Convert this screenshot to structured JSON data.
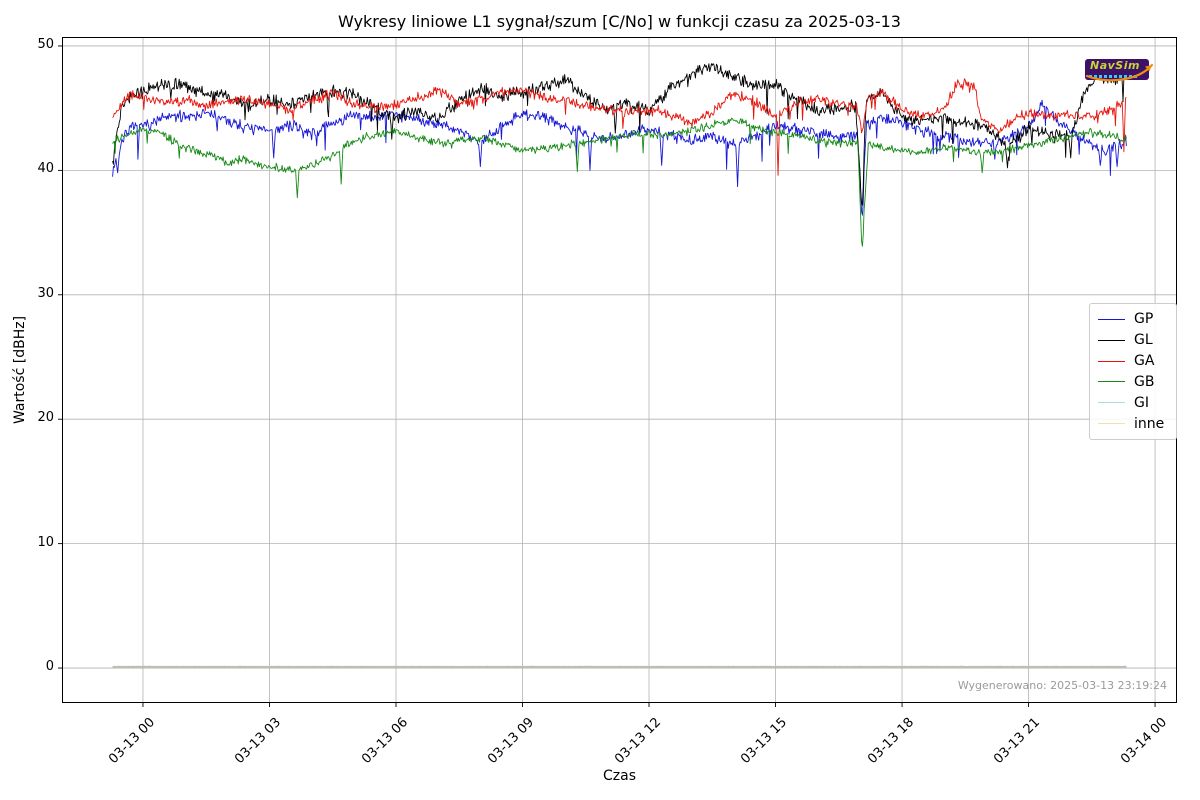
{
  "watermark": {
    "text": "NavSim"
  },
  "footer": {
    "generated": "Wygenerowano: 2025-03-13 23:19:24"
  },
  "chart_data": {
    "type": "line",
    "title": "Wykresy liniowe L1 sygnał/szum [C/No] w funkcji czasu za 2025-03-13",
    "xlabel": "Czas",
    "ylabel": "Wartość [dBHz]",
    "x_unit": "hours since 2025-03-13 00:00",
    "xlim": [
      -1.92,
      24.52
    ],
    "ylim": [
      -2.81,
      50.72
    ],
    "grid": true,
    "legend_position": "center right",
    "xticks": {
      "values": [
        0,
        3,
        6,
        9,
        12,
        15,
        18,
        21,
        24
      ],
      "labels": [
        "03-13 00",
        "03-13 03",
        "03-13 06",
        "03-13 09",
        "03-13 12",
        "03-13 15",
        "03-13 18",
        "03-13 21",
        "03-14 00"
      ]
    },
    "yticks": {
      "values": [
        0,
        10,
        20,
        30,
        40,
        50
      ]
    },
    "series": [
      {
        "name": "GP",
        "color": "#1717d6",
        "seed": 7,
        "noise": 0.55,
        "spike_prob": 0.035,
        "spike_depth": 2.3,
        "width": 0.9,
        "base": [
          [
            -0.72,
            40.0
          ],
          [
            -0.4,
            43.2
          ],
          [
            0,
            43.6
          ],
          [
            0.5,
            44.2
          ],
          [
            1,
            44.4
          ],
          [
            1.5,
            44.6
          ],
          [
            2,
            44.0
          ],
          [
            2.5,
            43.4
          ],
          [
            3,
            43.2
          ],
          [
            3.5,
            43.6
          ],
          [
            4,
            43.0
          ],
          [
            4.5,
            43.8
          ],
          [
            5,
            44.4
          ],
          [
            5.5,
            44.2
          ],
          [
            6,
            44.6
          ],
          [
            6.5,
            44.1
          ],
          [
            7,
            43.8
          ],
          [
            7.5,
            43.2
          ],
          [
            8,
            42.3
          ],
          [
            8.5,
            43.6
          ],
          [
            9,
            44.5
          ],
          [
            9.5,
            44.3
          ],
          [
            10,
            43.6
          ],
          [
            10.5,
            42.9
          ],
          [
            11,
            42.6
          ],
          [
            11.5,
            43.0
          ],
          [
            12,
            43.3
          ],
          [
            12.5,
            42.8
          ],
          [
            13,
            42.4
          ],
          [
            13.5,
            42.6
          ],
          [
            14,
            42.2
          ],
          [
            14.5,
            42.8
          ],
          [
            15,
            43.6
          ],
          [
            15.5,
            43.3
          ],
          [
            16,
            43.0
          ],
          [
            16.5,
            42.6
          ],
          [
            16.95,
            42.8
          ],
          [
            17.05,
            36.4
          ],
          [
            17.15,
            43.6
          ],
          [
            17.5,
            44.2
          ],
          [
            18,
            43.9
          ],
          [
            18.5,
            43.2
          ],
          [
            19,
            42.7
          ],
          [
            19.5,
            42.4
          ],
          [
            20,
            42.2
          ],
          [
            20.5,
            42.6
          ],
          [
            21,
            43.6
          ],
          [
            21.3,
            45.2
          ],
          [
            21.7,
            44.0
          ],
          [
            22,
            43.2
          ],
          [
            22.5,
            42.0
          ],
          [
            22.8,
            41.6
          ],
          [
            23.32,
            42.4
          ]
        ],
        "events": [
          [
            -0.6,
            39.8
          ],
          [
            3.1,
            41.0
          ],
          [
            8.0,
            40.3
          ],
          [
            10.6,
            40.0
          ],
          [
            12.3,
            40.4
          ],
          [
            14.1,
            38.7
          ],
          [
            17.05,
            36.4
          ],
          [
            20.2,
            40.9
          ],
          [
            22.7,
            40.4
          ],
          [
            23.1,
            40.3
          ]
        ]
      },
      {
        "name": "GL",
        "color": "#000000",
        "seed": 13,
        "noise": 0.6,
        "spike_prob": 0.03,
        "spike_depth": 2.1,
        "width": 0.9,
        "base": [
          [
            -0.72,
            40.8
          ],
          [
            -0.5,
            45.5
          ],
          [
            0,
            46.3
          ],
          [
            0.5,
            47.0
          ],
          [
            1,
            46.8
          ],
          [
            1.5,
            46.2
          ],
          [
            2,
            46.0
          ],
          [
            2.5,
            45.2
          ],
          [
            3,
            45.8
          ],
          [
            3.5,
            45.2
          ],
          [
            4,
            46.0
          ],
          [
            4.5,
            46.3
          ],
          [
            5,
            46.2
          ],
          [
            5.5,
            45.0
          ],
          [
            6,
            44.3
          ],
          [
            6.5,
            44.8
          ],
          [
            7,
            44.2
          ],
          [
            7.5,
            45.5
          ],
          [
            8,
            46.6
          ],
          [
            8.5,
            46.0
          ],
          [
            9,
            46.3
          ],
          [
            9.5,
            46.8
          ],
          [
            10,
            47.3
          ],
          [
            10.5,
            46.0
          ],
          [
            11,
            44.8
          ],
          [
            11.5,
            45.5
          ],
          [
            12,
            44.8
          ],
          [
            12.5,
            46.5
          ],
          [
            13,
            47.8
          ],
          [
            13.4,
            48.3
          ],
          [
            14,
            47.6
          ],
          [
            14.5,
            46.8
          ],
          [
            15,
            46.9
          ],
          [
            15.5,
            45.8
          ],
          [
            16,
            44.8
          ],
          [
            16.5,
            45.0
          ],
          [
            16.9,
            45.2
          ],
          [
            17.05,
            37.2
          ],
          [
            17.15,
            45.8
          ],
          [
            17.5,
            46.3
          ],
          [
            18,
            44.3
          ],
          [
            18.5,
            44.0
          ],
          [
            19,
            44.2
          ],
          [
            19.5,
            43.8
          ],
          [
            20,
            43.6
          ],
          [
            20.5,
            41.8
          ],
          [
            21,
            43.4
          ],
          [
            21.5,
            43.0
          ],
          [
            22,
            42.6
          ],
          [
            22.3,
            46.0
          ],
          [
            22.6,
            47.6
          ],
          [
            23,
            47.2
          ],
          [
            23.32,
            47.6
          ]
        ],
        "events": [
          [
            5.9,
            42.5
          ],
          [
            11.2,
            43.0
          ],
          [
            17.05,
            37.2
          ],
          [
            20.5,
            40.2
          ],
          [
            22.0,
            41.0
          ]
        ]
      },
      {
        "name": "GA",
        "color": "#e8140c",
        "seed": 21,
        "noise": 0.5,
        "spike_prob": 0.02,
        "spike_depth": 1.7,
        "width": 0.9,
        "base": [
          [
            -0.72,
            44.3
          ],
          [
            -0.3,
            46.2
          ],
          [
            0,
            45.9
          ],
          [
            0.5,
            45.4
          ],
          [
            1,
            45.7
          ],
          [
            1.5,
            45.2
          ],
          [
            2,
            45.5
          ],
          [
            2.5,
            45.7
          ],
          [
            3,
            45.3
          ],
          [
            3.5,
            44.9
          ],
          [
            4,
            45.6
          ],
          [
            4.5,
            46.2
          ],
          [
            5,
            45.3
          ],
          [
            5.5,
            45.0
          ],
          [
            6,
            45.3
          ],
          [
            6.5,
            45.8
          ],
          [
            7,
            46.4
          ],
          [
            7.5,
            45.4
          ],
          [
            8,
            45.7
          ],
          [
            8.5,
            46.3
          ],
          [
            9,
            46.5
          ],
          [
            9.5,
            45.9
          ],
          [
            10,
            45.6
          ],
          [
            10.5,
            45.2
          ],
          [
            11,
            44.9
          ],
          [
            11.5,
            44.7
          ],
          [
            12,
            44.9
          ],
          [
            12.5,
            44.5
          ],
          [
            13,
            43.8
          ],
          [
            13.5,
            44.6
          ],
          [
            14,
            46.2
          ],
          [
            14.5,
            45.6
          ],
          [
            15,
            44.3
          ],
          [
            15.5,
            45.4
          ],
          [
            16,
            45.8
          ],
          [
            16.5,
            45.3
          ],
          [
            16.95,
            45.0
          ],
          [
            17.05,
            42.8
          ],
          [
            17.2,
            46.0
          ],
          [
            17.5,
            46.3
          ],
          [
            18,
            44.9
          ],
          [
            18.5,
            44.3
          ],
          [
            19,
            45.0
          ],
          [
            19.3,
            46.9
          ],
          [
            19.7,
            46.9
          ],
          [
            19.9,
            44.0
          ],
          [
            20.3,
            43.2
          ],
          [
            20.7,
            44.3
          ],
          [
            21,
            44.6
          ],
          [
            21.5,
            44.3
          ],
          [
            22,
            44.6
          ],
          [
            22.5,
            44.2
          ],
          [
            22.9,
            44.8
          ],
          [
            23.32,
            45.8
          ]
        ],
        "events": [
          [
            15.05,
            39.6
          ],
          [
            23.25,
            41.5
          ]
        ]
      },
      {
        "name": "GB",
        "color": "#178a17",
        "seed": 29,
        "noise": 0.4,
        "spike_prob": 0.018,
        "spike_depth": 1.6,
        "width": 0.9,
        "base": [
          [
            -0.72,
            42.4
          ],
          [
            0,
            43.3
          ],
          [
            0.4,
            43.0
          ],
          [
            0.8,
            42.2
          ],
          [
            1.2,
            41.6
          ],
          [
            1.6,
            41.2
          ],
          [
            2,
            40.6
          ],
          [
            2.4,
            40.9
          ],
          [
            2.8,
            40.4
          ],
          [
            3.2,
            40.2
          ],
          [
            3.6,
            39.9
          ],
          [
            4,
            40.4
          ],
          [
            4.4,
            41.0
          ],
          [
            4.8,
            41.9
          ],
          [
            5.2,
            42.6
          ],
          [
            5.6,
            42.9
          ],
          [
            6,
            43.1
          ],
          [
            6.4,
            42.7
          ],
          [
            6.8,
            42.4
          ],
          [
            7.2,
            42.2
          ],
          [
            7.6,
            42.5
          ],
          [
            8,
            42.6
          ],
          [
            8.5,
            42.2
          ],
          [
            9,
            41.6
          ],
          [
            9.5,
            41.7
          ],
          [
            10,
            42.0
          ],
          [
            10.5,
            42.3
          ],
          [
            11,
            42.6
          ],
          [
            11.5,
            42.8
          ],
          [
            12,
            42.9
          ],
          [
            12.5,
            42.8
          ],
          [
            13,
            43.2
          ],
          [
            13.5,
            43.6
          ],
          [
            14,
            44.0
          ],
          [
            14.3,
            43.8
          ],
          [
            14.7,
            43.2
          ],
          [
            15,
            43.0
          ],
          [
            15.5,
            42.8
          ],
          [
            16,
            42.4
          ],
          [
            16.5,
            42.2
          ],
          [
            16.95,
            42.3
          ],
          [
            17.05,
            33.9
          ],
          [
            17.2,
            42.0
          ],
          [
            17.5,
            41.9
          ],
          [
            18,
            41.6
          ],
          [
            18.5,
            41.4
          ],
          [
            19,
            41.9
          ],
          [
            19.5,
            41.6
          ],
          [
            20,
            41.4
          ],
          [
            20.5,
            41.7
          ],
          [
            21,
            42.0
          ],
          [
            21.5,
            42.4
          ],
          [
            22,
            42.8
          ],
          [
            22.5,
            43.0
          ],
          [
            23,
            42.8
          ],
          [
            23.32,
            42.5
          ]
        ],
        "events": [
          [
            3.65,
            37.8
          ],
          [
            4.7,
            38.9
          ],
          [
            10.3,
            39.9
          ],
          [
            17.05,
            33.9
          ],
          [
            19.9,
            39.8
          ]
        ]
      },
      {
        "name": "GI",
        "color": "#add8e6",
        "plot_color": "#9fc6da",
        "seed": 3,
        "noise": 0.015,
        "spike_prob": 0,
        "spike_depth": 0,
        "width": 1.3,
        "base": [
          [
            -0.72,
            0.12
          ],
          [
            23.32,
            0.12
          ]
        ],
        "events": []
      },
      {
        "name": "inne",
        "color": "#f5deb3",
        "plot_color": "#c4bba2",
        "seed": 5,
        "noise": 0.015,
        "spike_prob": 0,
        "spike_depth": 0,
        "width": 1.3,
        "base": [
          [
            -0.72,
            0.08
          ],
          [
            23.32,
            0.08
          ]
        ],
        "events": []
      }
    ]
  }
}
